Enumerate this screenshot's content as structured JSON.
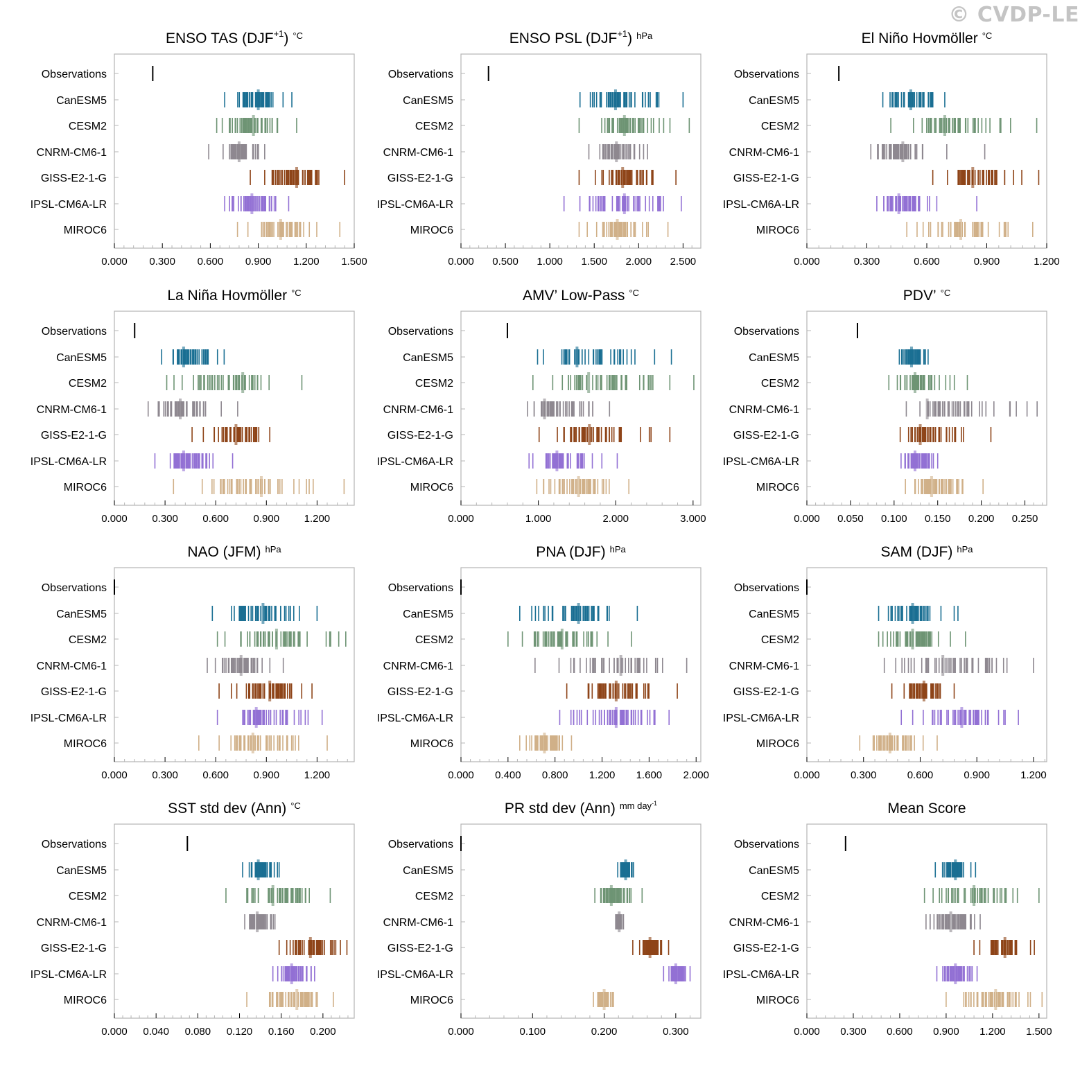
{
  "watermark": "© CVDP-LE",
  "models": [
    "Observations",
    "CanESM5",
    "CESM2",
    "CNRM-CM6-1",
    "GISS-E2-1-G",
    "IPSL-CM6A-LR",
    "MIROC6"
  ],
  "colors": {
    "Observations": "#000000",
    "CanESM5": "#1a6f93",
    "CESM2": "#6e9474",
    "CNRM-CM6-1": "#8e8890",
    "GISS-E2-1-G": "#8e4418",
    "IPSL-CM6A-LR": "#9270d4",
    "MIROC6": "#d0b088",
    "frame": "#b4b4b4",
    "axis": "#000000"
  },
  "chart_data": [
    {
      "type": "strip",
      "title": "ENSO TAS (DJF",
      "title_sup": "+1",
      "title_close": ")",
      "units": "°C",
      "xlim": [
        0,
        1.5
      ],
      "ticks": [
        "0.000",
        "0.300",
        "0.600",
        "0.900",
        "1.200",
        "1.500"
      ],
      "tick_values": [
        0,
        0.3,
        0.6,
        0.9,
        1.2,
        1.5
      ],
      "observations": 0.24,
      "series": [
        {
          "name": "CanESM5",
          "min": 0.69,
          "max": 1.11,
          "mean": 0.9,
          "outliers": []
        },
        {
          "name": "CESM2",
          "min": 0.64,
          "max": 1.14,
          "mean": 0.87,
          "outliers": []
        },
        {
          "name": "CNRM-CM6-1",
          "min": 0.68,
          "max": 0.94,
          "mean": 0.78,
          "outliers": [
            0.59
          ]
        },
        {
          "name": "GISS-E2-1-G",
          "min": 0.85,
          "max": 1.44,
          "mean": 1.14,
          "outliers": []
        },
        {
          "name": "IPSL-CM6A-LR",
          "min": 0.69,
          "max": 1.09,
          "mean": 0.86,
          "outliers": []
        },
        {
          "name": "MIROC6",
          "min": 0.77,
          "max": 1.41,
          "mean": 1.04,
          "outliers": []
        }
      ]
    },
    {
      "type": "strip",
      "title": "ENSO PSL (DJF",
      "title_sup": "+1",
      "title_close": ")",
      "units": "hPa",
      "xlim": [
        0,
        2.7
      ],
      "ticks": [
        "0.000",
        "0.500",
        "1.000",
        "1.500",
        "2.000",
        "2.500"
      ],
      "tick_values": [
        0,
        0.5,
        1,
        1.5,
        2,
        2.5
      ],
      "observations": 0.31,
      "series": [
        {
          "name": "CanESM5",
          "min": 1.34,
          "max": 2.5,
          "mean": 1.74,
          "outliers": []
        },
        {
          "name": "CESM2",
          "min": 1.33,
          "max": 2.57,
          "mean": 1.84,
          "outliers": []
        },
        {
          "name": "CNRM-CM6-1",
          "min": 1.44,
          "max": 2.1,
          "mean": 1.75,
          "outliers": []
        },
        {
          "name": "GISS-E2-1-G",
          "min": 1.33,
          "max": 2.42,
          "mean": 1.82,
          "outliers": []
        },
        {
          "name": "IPSL-CM6A-LR",
          "min": 1.16,
          "max": 2.48,
          "mean": 1.84,
          "outliers": []
        },
        {
          "name": "MIROC6",
          "min": 1.33,
          "max": 2.33,
          "mean": 1.76,
          "outliers": []
        }
      ]
    },
    {
      "type": "strip",
      "title": "El Niño Hovmöller",
      "title_sup": "",
      "title_close": "",
      "units": "°C",
      "xlim": [
        0,
        1.2
      ],
      "ticks": [
        "0.000",
        "0.300",
        "0.600",
        "0.900",
        "1.200"
      ],
      "tick_values": [
        0,
        0.3,
        0.6,
        0.9,
        1.2
      ],
      "observations": 0.16,
      "series": [
        {
          "name": "CanESM5",
          "min": 0.38,
          "max": 0.69,
          "mean": 0.52,
          "outliers": []
        },
        {
          "name": "CESM2",
          "min": 0.42,
          "max": 1.15,
          "mean": 0.69,
          "outliers": []
        },
        {
          "name": "CNRM-CM6-1",
          "min": 0.32,
          "max": 0.58,
          "mean": 0.48,
          "outliers": [
            0.7,
            0.89
          ]
        },
        {
          "name": "GISS-E2-1-G",
          "min": 0.63,
          "max": 1.16,
          "mean": 0.83,
          "outliers": []
        },
        {
          "name": "IPSL-CM6A-LR",
          "min": 0.35,
          "max": 0.65,
          "mean": 0.46,
          "outliers": [
            0.85
          ]
        },
        {
          "name": "MIROC6",
          "min": 0.5,
          "max": 1.13,
          "mean": 0.77,
          "outliers": []
        }
      ]
    },
    {
      "type": "strip",
      "title": "La Niña Hovmöller",
      "title_sup": "",
      "title_close": "",
      "units": "°C",
      "xlim": [
        0,
        1.42
      ],
      "ticks": [
        "0.000",
        "0.300",
        "0.600",
        "0.900",
        "1.200"
      ],
      "tick_values": [
        0,
        0.3,
        0.6,
        0.9,
        1.2
      ],
      "observations": 0.12,
      "series": [
        {
          "name": "CanESM5",
          "min": 0.28,
          "max": 0.65,
          "mean": 0.41,
          "outliers": []
        },
        {
          "name": "CESM2",
          "min": 0.31,
          "max": 1.11,
          "mean": 0.76,
          "outliers": []
        },
        {
          "name": "CNRM-CM6-1",
          "min": 0.2,
          "max": 0.73,
          "mean": 0.39,
          "outliers": []
        },
        {
          "name": "GISS-E2-1-G",
          "min": 0.46,
          "max": 0.92,
          "mean": 0.72,
          "outliers": []
        },
        {
          "name": "IPSL-CM6A-LR",
          "min": 0.24,
          "max": 0.7,
          "mean": 0.41,
          "outliers": []
        },
        {
          "name": "MIROC6",
          "min": 0.35,
          "max": 1.36,
          "mean": 0.87,
          "outliers": []
        }
      ]
    },
    {
      "type": "strip",
      "title": "AMV’ Low-Pass",
      "title_sup": "",
      "title_close": "",
      "units": "°C",
      "xlim": [
        0,
        3.1
      ],
      "ticks": [
        "0.000",
        "1.000",
        "2.000",
        "3.000"
      ],
      "tick_values": [
        0,
        1,
        2,
        3
      ],
      "observations": 0.6,
      "series": [
        {
          "name": "CanESM5",
          "min": 0.99,
          "max": 2.72,
          "mean": 1.5,
          "outliers": []
        },
        {
          "name": "CESM2",
          "min": 0.93,
          "max": 3.01,
          "mean": 1.65,
          "outliers": []
        },
        {
          "name": "CNRM-CM6-1",
          "min": 0.86,
          "max": 1.92,
          "mean": 1.08,
          "outliers": []
        },
        {
          "name": "GISS-E2-1-G",
          "min": 1.01,
          "max": 2.7,
          "mean": 1.66,
          "outliers": []
        },
        {
          "name": "IPSL-CM6A-LR",
          "min": 0.88,
          "max": 2.02,
          "mean": 1.24,
          "outliers": []
        },
        {
          "name": "MIROC6",
          "min": 0.98,
          "max": 2.17,
          "mean": 1.52,
          "outliers": []
        }
      ]
    },
    {
      "type": "strip",
      "title": "PDV’",
      "title_sup": "",
      "title_close": "",
      "units": "°C",
      "xlim": [
        0,
        0.275
      ],
      "ticks": [
        "0.000",
        "0.050",
        "0.100",
        "0.150",
        "0.200",
        "0.250"
      ],
      "tick_values": [
        0,
        0.05,
        0.1,
        0.15,
        0.2,
        0.25
      ],
      "observations": 0.058,
      "series": [
        {
          "name": "CanESM5",
          "min": 0.106,
          "max": 0.139,
          "mean": 0.12,
          "outliers": []
        },
        {
          "name": "CESM2",
          "min": 0.094,
          "max": 0.184,
          "mean": 0.124,
          "outliers": []
        },
        {
          "name": "CNRM-CM6-1",
          "min": 0.114,
          "max": 0.264,
          "mean": 0.138,
          "outliers": []
        },
        {
          "name": "GISS-E2-1-G",
          "min": 0.107,
          "max": 0.211,
          "mean": 0.13,
          "outliers": []
        },
        {
          "name": "IPSL-CM6A-LR",
          "min": 0.108,
          "max": 0.15,
          "mean": 0.124,
          "outliers": []
        },
        {
          "name": "MIROC6",
          "min": 0.113,
          "max": 0.202,
          "mean": 0.143,
          "outliers": []
        }
      ]
    },
    {
      "type": "strip",
      "title": "NAO (JFM)",
      "title_sup": "",
      "title_close": "",
      "units": "hPa",
      "xlim": [
        0,
        1.42
      ],
      "ticks": [
        "0.000",
        "0.300",
        "0.600",
        "0.900",
        "1.200"
      ],
      "tick_values": [
        0,
        0.3,
        0.6,
        0.9,
        1.2
      ],
      "observations": 0.0,
      "series": [
        {
          "name": "CanESM5",
          "min": 0.58,
          "max": 1.2,
          "mean": 0.88,
          "outliers": []
        },
        {
          "name": "CESM2",
          "min": 0.61,
          "max": 1.37,
          "mean": 0.96,
          "outliers": []
        },
        {
          "name": "CNRM-CM6-1",
          "min": 0.55,
          "max": 1.0,
          "mean": 0.75,
          "outliers": []
        },
        {
          "name": "GISS-E2-1-G",
          "min": 0.62,
          "max": 1.17,
          "mean": 0.92,
          "outliers": []
        },
        {
          "name": "IPSL-CM6A-LR",
          "min": 0.61,
          "max": 1.23,
          "mean": 0.84,
          "outliers": []
        },
        {
          "name": "MIROC6",
          "min": 0.5,
          "max": 1.26,
          "mean": 0.82,
          "outliers": []
        }
      ]
    },
    {
      "type": "strip",
      "title": "PNA (DJF)",
      "title_sup": "",
      "title_close": "",
      "units": "hPa",
      "xlim": [
        0,
        2.04
      ],
      "ticks": [
        "0.000",
        "0.400",
        "0.800",
        "1.200",
        "1.600",
        "2.000"
      ],
      "tick_values": [
        0,
        0.4,
        0.8,
        1.2,
        1.6,
        2.0
      ],
      "observations": 0.0,
      "series": [
        {
          "name": "CanESM5",
          "min": 0.5,
          "max": 1.5,
          "mean": 1.0,
          "outliers": []
        },
        {
          "name": "CESM2",
          "min": 0.4,
          "max": 1.45,
          "mean": 0.86,
          "outliers": []
        },
        {
          "name": "CNRM-CM6-1",
          "min": 0.63,
          "max": 1.92,
          "mean": 1.36,
          "outliers": []
        },
        {
          "name": "GISS-E2-1-G",
          "min": 0.9,
          "max": 1.84,
          "mean": 1.32,
          "outliers": []
        },
        {
          "name": "IPSL-CM6A-LR",
          "min": 0.84,
          "max": 1.77,
          "mean": 1.32,
          "outliers": []
        },
        {
          "name": "MIROC6",
          "min": 0.5,
          "max": 0.94,
          "mean": 0.71,
          "outliers": []
        }
      ]
    },
    {
      "type": "strip",
      "title": "SAM (DJF)",
      "title_sup": "",
      "title_close": "",
      "units": "hPa",
      "xlim": [
        0,
        1.27
      ],
      "ticks": [
        "0.000",
        "0.300",
        "0.600",
        "0.900",
        "1.200"
      ],
      "tick_values": [
        0,
        0.3,
        0.6,
        0.9,
        1.2
      ],
      "observations": 0.0,
      "series": [
        {
          "name": "CanESM5",
          "min": 0.38,
          "max": 0.71,
          "mean": 0.56,
          "outliers": [
            0.78,
            0.8
          ]
        },
        {
          "name": "CESM2",
          "min": 0.38,
          "max": 0.76,
          "mean": 0.56,
          "outliers": [
            0.84
          ]
        },
        {
          "name": "CNRM-CM6-1",
          "min": 0.41,
          "max": 1.2,
          "mean": 0.72,
          "outliers": []
        },
        {
          "name": "GISS-E2-1-G",
          "min": 0.45,
          "max": 0.78,
          "mean": 0.62,
          "outliers": []
        },
        {
          "name": "IPSL-CM6A-LR",
          "min": 0.5,
          "max": 1.12,
          "mean": 0.82,
          "outliers": []
        },
        {
          "name": "MIROC6",
          "min": 0.28,
          "max": 0.69,
          "mean": 0.44,
          "outliers": []
        }
      ]
    },
    {
      "type": "strip",
      "title": "SST std dev (Ann)",
      "title_sup": "",
      "title_close": "",
      "units": "°C",
      "xlim": [
        0,
        0.23
      ],
      "ticks": [
        "0.000",
        "0.040",
        "0.080",
        "0.120",
        "0.160",
        "0.200"
      ],
      "tick_values": [
        0,
        0.04,
        0.08,
        0.12,
        0.16,
        0.2
      ],
      "observations": 0.07,
      "series": [
        {
          "name": "CanESM5",
          "min": 0.123,
          "max": 0.158,
          "mean": 0.138,
          "outliers": []
        },
        {
          "name": "CESM2",
          "min": 0.107,
          "max": 0.207,
          "mean": 0.152,
          "outliers": []
        },
        {
          "name": "CNRM-CM6-1",
          "min": 0.125,
          "max": 0.154,
          "mean": 0.137,
          "outliers": []
        },
        {
          "name": "GISS-E2-1-G",
          "min": 0.158,
          "max": 0.223,
          "mean": 0.188,
          "outliers": []
        },
        {
          "name": "IPSL-CM6A-LR",
          "min": 0.152,
          "max": 0.192,
          "mean": 0.17,
          "outliers": []
        },
        {
          "name": "MIROC6",
          "min": 0.127,
          "max": 0.21,
          "mean": 0.175,
          "outliers": []
        }
      ]
    },
    {
      "type": "strip",
      "title": "PR std dev (Ann)",
      "title_sup": "",
      "title_close": "",
      "units": "mm day",
      "units_sup": "-1",
      "xlim": [
        0,
        0.335
      ],
      "ticks": [
        "0.000",
        "0.100",
        "0.200",
        "0.300"
      ],
      "tick_values": [
        0,
        0.1,
        0.2,
        0.3
      ],
      "observations": 0.0,
      "series": [
        {
          "name": "CanESM5",
          "min": 0.219,
          "max": 0.241,
          "mean": 0.23,
          "outliers": []
        },
        {
          "name": "CESM2",
          "min": 0.187,
          "max": 0.253,
          "mean": 0.21,
          "outliers": []
        },
        {
          "name": "CNRM-CM6-1",
          "min": 0.216,
          "max": 0.227,
          "mean": 0.221,
          "outliers": []
        },
        {
          "name": "GISS-E2-1-G",
          "min": 0.24,
          "max": 0.29,
          "mean": 0.264,
          "outliers": []
        },
        {
          "name": "IPSL-CM6A-LR",
          "min": 0.283,
          "max": 0.32,
          "mean": 0.3,
          "outliers": []
        },
        {
          "name": "MIROC6",
          "min": 0.185,
          "max": 0.213,
          "mean": 0.2,
          "outliers": []
        }
      ]
    },
    {
      "type": "strip",
      "title": "Mean Score",
      "title_sup": "",
      "title_close": "",
      "units": "",
      "xlim": [
        0,
        1.55
      ],
      "ticks": [
        "0.000",
        "0.300",
        "0.600",
        "0.900",
        "1.200",
        "1.500"
      ],
      "tick_values": [
        0,
        0.3,
        0.6,
        0.9,
        1.2,
        1.5
      ],
      "observations": 0.25,
      "series": [
        {
          "name": "CanESM5",
          "min": 0.83,
          "max": 1.09,
          "mean": 0.96,
          "outliers": []
        },
        {
          "name": "CESM2",
          "min": 0.76,
          "max": 1.5,
          "mean": 1.08,
          "outliers": []
        },
        {
          "name": "CNRM-CM6-1",
          "min": 0.77,
          "max": 1.12,
          "mean": 0.93,
          "outliers": []
        },
        {
          "name": "GISS-E2-1-G",
          "min": 1.08,
          "max": 1.47,
          "mean": 1.28,
          "outliers": []
        },
        {
          "name": "IPSL-CM6A-LR",
          "min": 0.84,
          "max": 1.1,
          "mean": 0.96,
          "outliers": []
        },
        {
          "name": "MIROC6",
          "min": 0.9,
          "max": 1.52,
          "mean": 1.22,
          "outliers": []
        }
      ]
    }
  ]
}
